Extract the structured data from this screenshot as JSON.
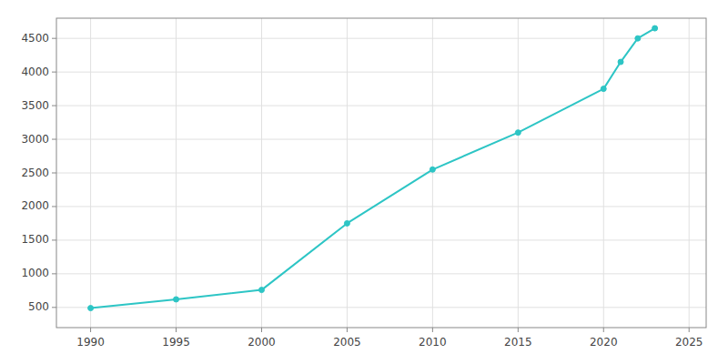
{
  "chart_data": {
    "type": "line",
    "x": [
      1990,
      1995,
      2000,
      2005,
      2010,
      2015,
      2020,
      2021,
      2022,
      2023
    ],
    "values": [
      490,
      620,
      760,
      1750,
      2550,
      3100,
      3750,
      4150,
      4500,
      4650
    ],
    "color": "#2DC5C5",
    "marker": "circle",
    "xlim": [
      1988,
      2026
    ],
    "ylim": [
      200,
      4800
    ],
    "xticks": [
      1990,
      1995,
      2000,
      2005,
      2010,
      2015,
      2020,
      2025
    ],
    "yticks": [
      500,
      1000,
      1500,
      2000,
      2500,
      3000,
      3500,
      4000,
      4500
    ],
    "grid": true
  }
}
